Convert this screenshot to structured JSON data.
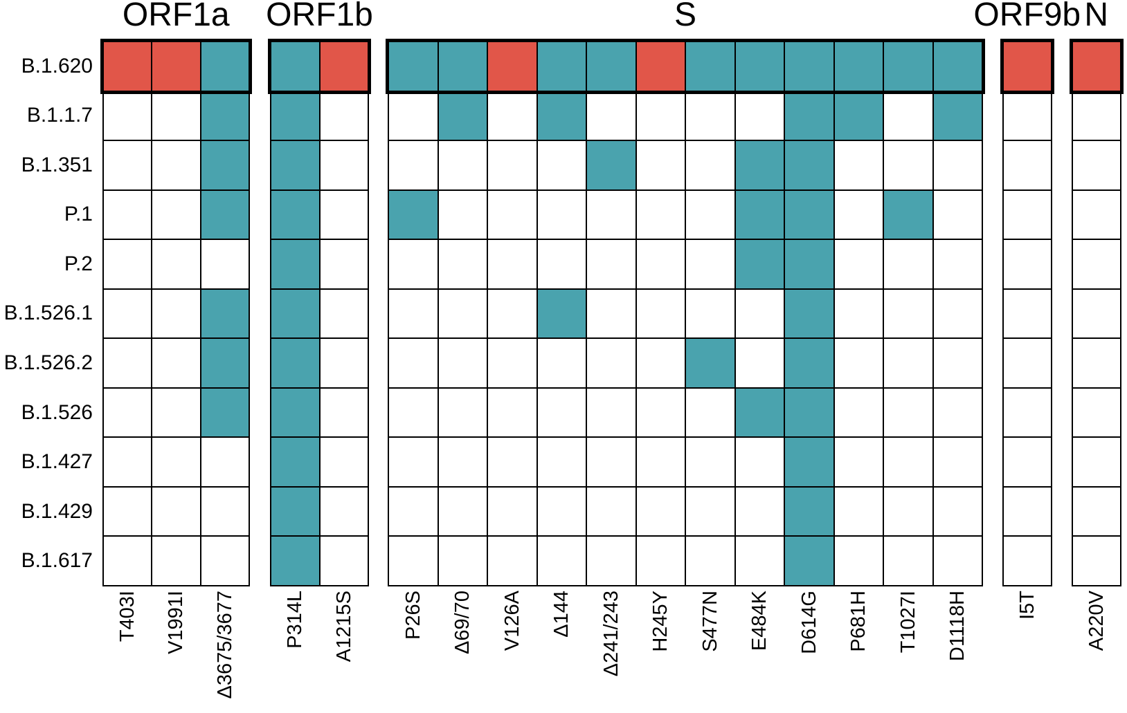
{
  "chart_data": {
    "type": "heatmap",
    "rows": [
      "B.1.620",
      "B.1.1.7",
      "B.1.351",
      "P.1",
      "P.2",
      "B.1.526.1",
      "B.1.526.2",
      "B.1.526",
      "B.1.427",
      "B.1.429",
      "B.1.617"
    ],
    "highlighted_row": "B.1.620",
    "column_groups": [
      {
        "gene": "ORF1a",
        "mutations": [
          "T403I",
          "V1991I",
          "Δ3675/3677"
        ]
      },
      {
        "gene": "ORF1b",
        "mutations": [
          "P314L",
          "A1215S"
        ]
      },
      {
        "gene": "S",
        "mutations": [
          "P26S",
          "Δ69/70",
          "V126A",
          "Δ144",
          "Δ241/243",
          "H245Y",
          "S477N",
          "E484K",
          "D614G",
          "P681H",
          "T1027I",
          "D1118H"
        ]
      },
      {
        "gene": "ORF9b",
        "mutations": [
          "I5T"
        ]
      },
      {
        "gene": "N",
        "mutations": [
          "A220V"
        ]
      }
    ],
    "cell_value_legend": {
      "0": "absent",
      "1": "present-shared",
      "2": "present-highlight"
    },
    "matrix": [
      [
        2,
        2,
        1,
        1,
        2,
        1,
        1,
        2,
        1,
        1,
        2,
        1,
        1,
        1,
        1,
        1,
        1,
        2,
        2
      ],
      [
        0,
        0,
        1,
        1,
        0,
        0,
        1,
        0,
        1,
        0,
        0,
        0,
        0,
        1,
        1,
        0,
        1,
        0,
        0
      ],
      [
        0,
        0,
        1,
        1,
        0,
        0,
        0,
        0,
        0,
        1,
        0,
        0,
        1,
        1,
        0,
        0,
        0,
        0,
        0
      ],
      [
        0,
        0,
        1,
        1,
        0,
        1,
        0,
        0,
        0,
        0,
        0,
        0,
        1,
        1,
        0,
        1,
        0,
        0,
        0
      ],
      [
        0,
        0,
        0,
        1,
        0,
        0,
        0,
        0,
        0,
        0,
        0,
        0,
        1,
        1,
        0,
        0,
        0,
        0,
        0
      ],
      [
        0,
        0,
        1,
        1,
        0,
        0,
        0,
        0,
        1,
        0,
        0,
        0,
        0,
        1,
        0,
        0,
        0,
        0,
        0
      ],
      [
        0,
        0,
        1,
        1,
        0,
        0,
        0,
        0,
        0,
        0,
        0,
        1,
        0,
        1,
        0,
        0,
        0,
        0,
        0
      ],
      [
        0,
        0,
        1,
        1,
        0,
        0,
        0,
        0,
        0,
        0,
        0,
        0,
        1,
        1,
        0,
        0,
        0,
        0,
        0
      ],
      [
        0,
        0,
        0,
        1,
        0,
        0,
        0,
        0,
        0,
        0,
        0,
        0,
        0,
        1,
        0,
        0,
        0,
        0,
        0
      ],
      [
        0,
        0,
        0,
        1,
        0,
        0,
        0,
        0,
        0,
        0,
        0,
        0,
        0,
        1,
        0,
        0,
        0,
        0,
        0
      ],
      [
        0,
        0,
        0,
        1,
        0,
        0,
        0,
        0,
        0,
        0,
        0,
        0,
        0,
        1,
        0,
        0,
        0,
        0,
        0
      ]
    ],
    "colors": {
      "absent": "#ffffff",
      "present_shared": "#4AA3AE",
      "present_highlight": "#E15649",
      "grid_line": "#000000",
      "background": "#ffffff"
    },
    "legend_position": "none",
    "grid_on": true
  }
}
